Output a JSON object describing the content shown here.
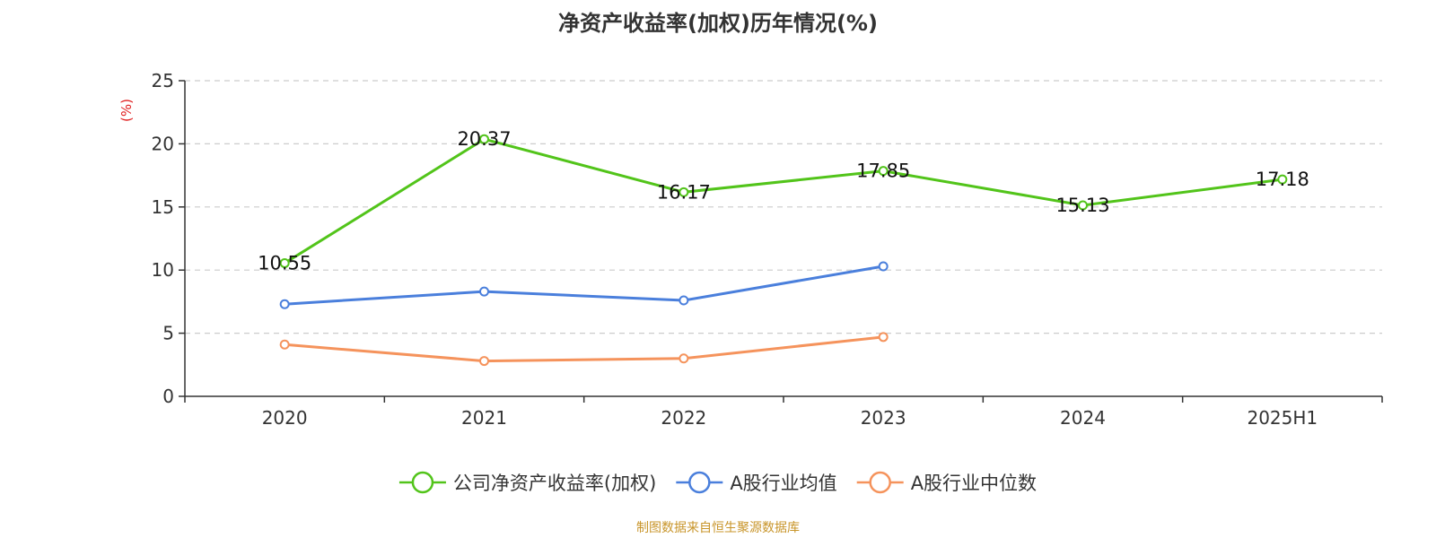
{
  "title": "净资产收益率(加权)历年情况(%)",
  "source": "制图数据来自恒生聚源数据库",
  "chart_data": {
    "type": "line",
    "title": "净资产收益率(加权)历年情况(%)",
    "ylabel": "(%)",
    "ylim": [
      0,
      25
    ],
    "yticks": [
      "0",
      "5",
      "10",
      "15",
      "20",
      "25"
    ],
    "grid": true,
    "legend_position": "bottom",
    "categories": [
      "2020",
      "2021",
      "2022",
      "2023",
      "2024",
      "2025H1"
    ],
    "series": [
      {
        "name": "公司净资产收益率(加权)",
        "color": "#52c41a",
        "values": [
          10.55,
          20.37,
          16.17,
          17.85,
          15.13,
          17.18
        ],
        "labels": [
          "10.55",
          "20.37",
          "16.17",
          "17.85",
          "15.13",
          "17.18"
        ]
      },
      {
        "name": "A股行业均值",
        "color": "#4a7fdc",
        "values": [
          7.3,
          8.3,
          7.6,
          10.3,
          null,
          null
        ]
      },
      {
        "name": "A股行业中位数",
        "color": "#f5935c",
        "values": [
          4.1,
          2.8,
          3.0,
          4.7,
          null,
          null
        ]
      }
    ]
  }
}
